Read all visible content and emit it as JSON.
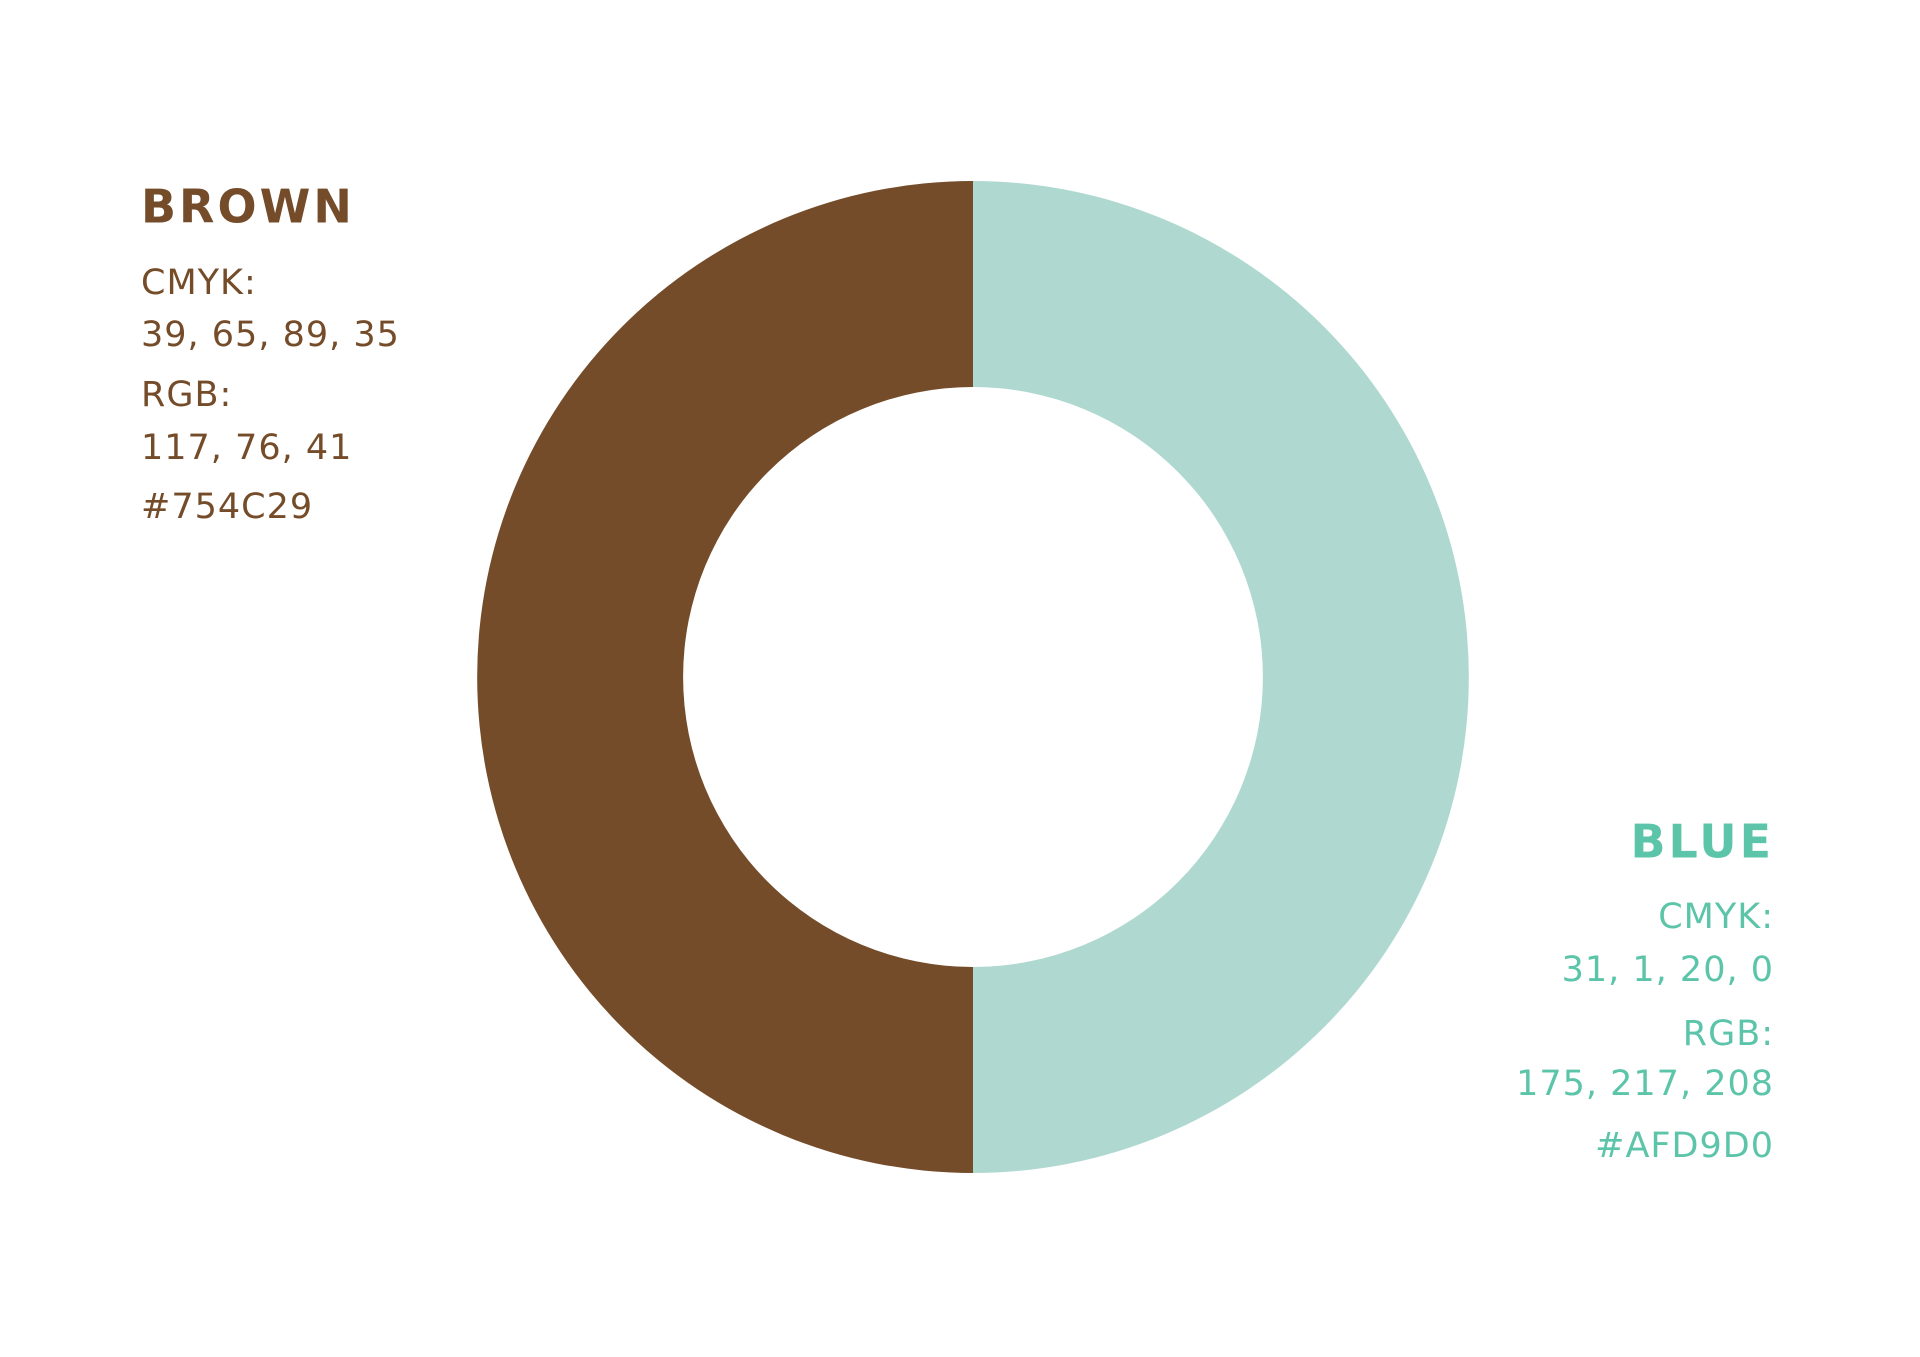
{
  "colors": [
    {
      "name": "BROWN",
      "cmyk_label": "CMYK:",
      "cmyk": "39, 65, 89, 35",
      "rgb_label": "RGB:",
      "rgb": "117, 76, 41",
      "hex": "#754C29"
    },
    {
      "name": "BLUE",
      "cmyk_label": "CMYK:",
      "cmyk": "31, 1, 20, 0",
      "rgb_label": "RGB:",
      "rgb": "175, 217, 208",
      "hex": "#AFD9D0"
    }
  ]
}
